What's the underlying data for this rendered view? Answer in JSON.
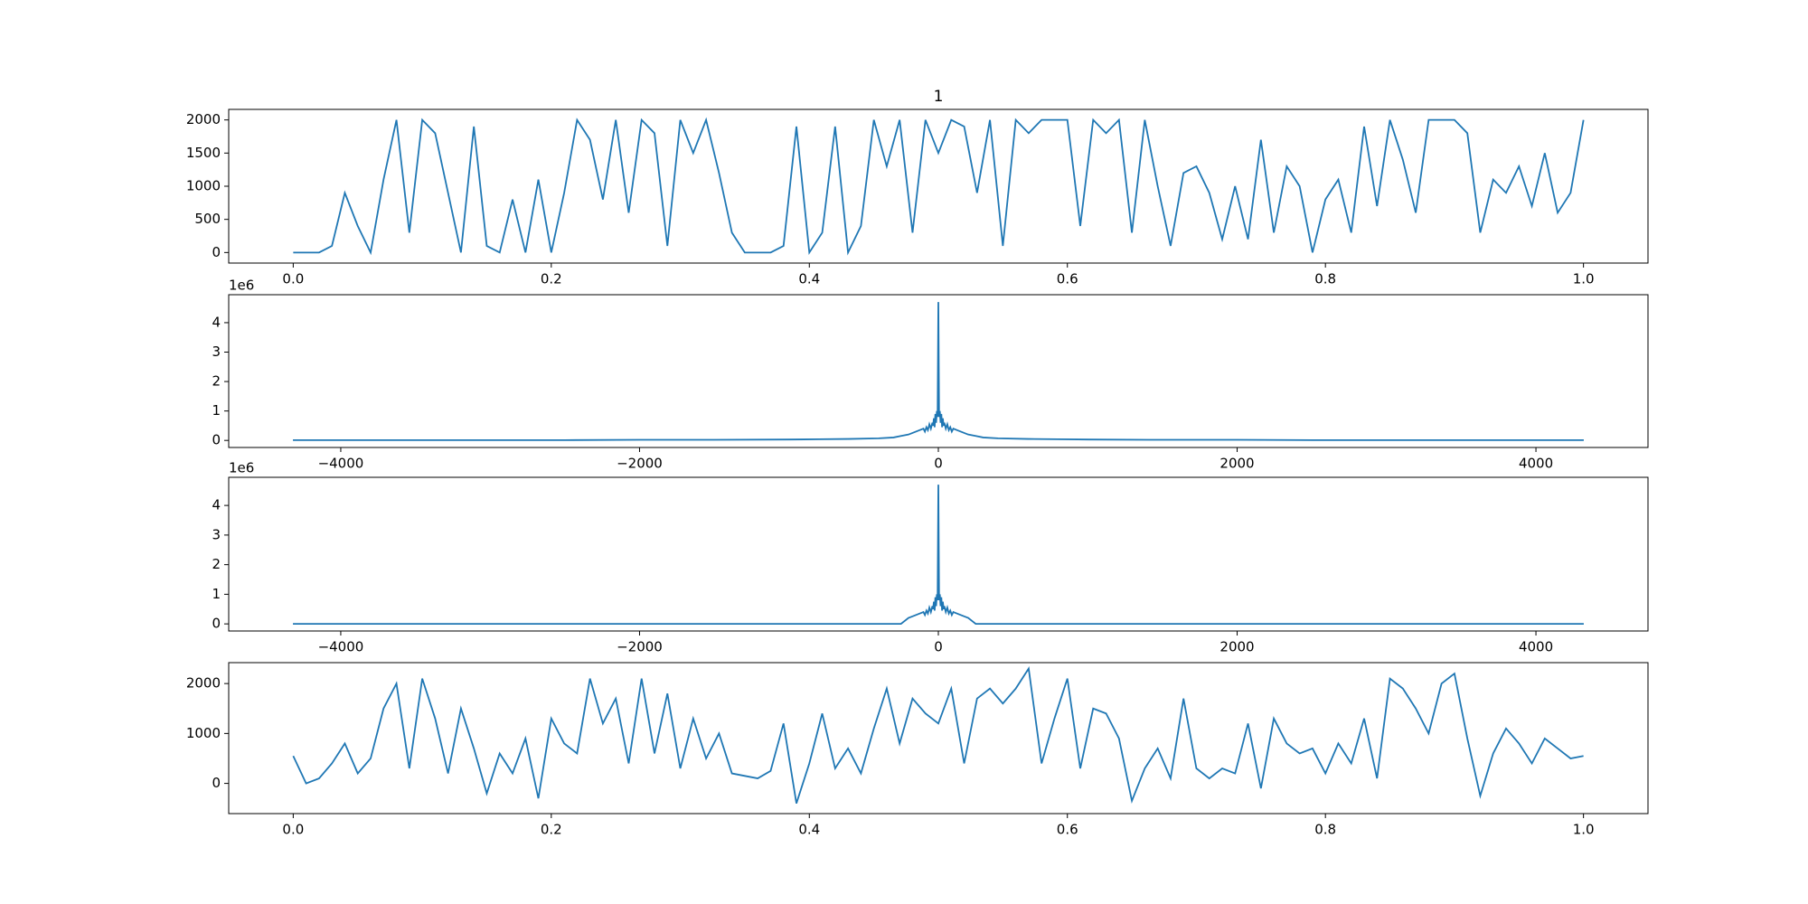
{
  "chart_data": [
    {
      "type": "line",
      "title": "1",
      "color": "#1f77b4",
      "x": [
        0,
        0.01,
        0.02,
        0.03,
        0.04,
        0.05,
        0.06,
        0.07,
        0.08,
        0.09,
        0.1,
        0.11,
        0.12,
        0.13,
        0.14,
        0.15,
        0.16,
        0.17,
        0.18,
        0.19,
        0.2,
        0.21,
        0.22,
        0.23,
        0.24,
        0.25,
        0.26,
        0.27,
        0.28,
        0.29,
        0.3,
        0.31,
        0.32,
        0.33,
        0.34,
        0.35,
        0.36,
        0.37,
        0.38,
        0.39,
        0.4,
        0.41,
        0.42,
        0.43,
        0.44,
        0.45,
        0.46,
        0.47,
        0.48,
        0.49,
        0.5,
        0.51,
        0.52,
        0.53,
        0.54,
        0.55,
        0.56,
        0.57,
        0.58,
        0.59,
        0.6,
        0.61,
        0.62,
        0.63,
        0.64,
        0.65,
        0.66,
        0.67,
        0.68,
        0.69,
        0.7,
        0.71,
        0.72,
        0.73,
        0.74,
        0.75,
        0.76,
        0.77,
        0.78,
        0.79,
        0.8,
        0.81,
        0.82,
        0.83,
        0.84,
        0.85,
        0.86,
        0.87,
        0.88,
        0.89,
        0.9,
        0.91,
        0.92,
        0.93,
        0.94,
        0.95,
        0.96,
        0.97,
        0.98,
        0.99,
        1
      ],
      "values": [
        0,
        0,
        0,
        100,
        900,
        400,
        0,
        1100,
        2000,
        300,
        2000,
        1800,
        900,
        0,
        1900,
        100,
        0,
        800,
        0,
        1100,
        0,
        900,
        2000,
        1700,
        800,
        2000,
        600,
        2000,
        1800,
        100,
        2000,
        1500,
        2000,
        1200,
        300,
        0,
        0,
        0,
        100,
        1900,
        0,
        300,
        1900,
        0,
        400,
        2000,
        1300,
        2000,
        300,
        2000,
        1500,
        2000,
        1900,
        900,
        2000,
        100,
        2000,
        1800,
        2000,
        2000,
        2000,
        400,
        2000,
        1800,
        2000,
        300,
        2000,
        1000,
        100,
        1200,
        1300,
        900,
        200,
        1000,
        200,
        1700,
        300,
        1300,
        1000,
        0,
        800,
        1100,
        300,
        1900,
        700,
        2000,
        1400,
        600,
        2000,
        2000,
        2000,
        1800,
        300,
        1100,
        900,
        1300,
        700,
        1500,
        600,
        900,
        2000
      ],
      "xlim": [
        -0.05,
        1.05
      ],
      "ylim": [
        -159,
        2159
      ],
      "xticks": [
        {
          "value": 0,
          "label": "0.0"
        },
        0.2,
        0.4,
        0.6,
        0.8,
        {
          "value": 1,
          "label": "1.0"
        }
      ],
      "yticks": [
        0,
        500,
        1000,
        1500,
        2000
      ]
    },
    {
      "type": "line",
      "offset_text": "1e6",
      "color": "#1f77b4",
      "x": [
        -4320,
        -4000,
        -3500,
        -3000,
        -2500,
        -2000,
        -1500,
        -1000,
        -800,
        -600,
        -400,
        -300,
        -250,
        -200,
        -175,
        -150,
        -125,
        -100,
        -90,
        -80,
        -70,
        -60,
        -50,
        -40,
        -35,
        -30,
        -25,
        -20,
        -15,
        -10,
        -5,
        0,
        5,
        10,
        15,
        20,
        25,
        30,
        35,
        40,
        50,
        60,
        70,
        80,
        90,
        100,
        125,
        150,
        175,
        200,
        250,
        300,
        400,
        600,
        800,
        1000,
        1500,
        2000,
        2500,
        3000,
        3500,
        4000,
        4320
      ],
      "values": [
        0.01,
        0.01,
        0.01,
        0.01,
        0.01,
        0.02,
        0.02,
        0.03,
        0.04,
        0.05,
        0.07,
        0.1,
        0.15,
        0.2,
        0.25,
        0.3,
        0.35,
        0.4,
        0.3,
        0.45,
        0.35,
        0.55,
        0.4,
        0.6,
        0.5,
        0.75,
        0.45,
        0.9,
        0.6,
        1.0,
        0.8,
        4.7,
        0.8,
        1.0,
        0.6,
        0.9,
        0.45,
        0.75,
        0.5,
        0.6,
        0.4,
        0.55,
        0.35,
        0.45,
        0.3,
        0.4,
        0.35,
        0.3,
        0.25,
        0.2,
        0.15,
        0.1,
        0.07,
        0.05,
        0.04,
        0.03,
        0.02,
        0.02,
        0.01,
        0.01,
        0.01,
        0.01,
        0.01
      ],
      "xlim": [
        -4750,
        4750
      ],
      "ylim": [
        -0.24,
        4.95
      ],
      "xticks": [
        {
          "value": -4000,
          "label": "−4000"
        },
        {
          "value": -2000,
          "label": "−2000"
        },
        0,
        2000,
        4000
      ],
      "yticks": [
        0,
        1,
        2,
        3,
        4
      ]
    },
    {
      "type": "line",
      "offset_text": "1e6",
      "color": "#1f77b4",
      "x": [
        -4320,
        -4000,
        -3500,
        -3000,
        -2500,
        -2000,
        -1500,
        -1000,
        -800,
        -600,
        -400,
        -300,
        -250,
        -200,
        -175,
        -150,
        -125,
        -100,
        -90,
        -80,
        -70,
        -60,
        -50,
        -40,
        -35,
        -30,
        -25,
        -20,
        -15,
        -10,
        -5,
        0,
        5,
        10,
        15,
        20,
        25,
        30,
        35,
        40,
        50,
        60,
        70,
        80,
        90,
        100,
        125,
        150,
        175,
        200,
        250,
        300,
        400,
        600,
        800,
        1000,
        1500,
        2000,
        2500,
        3000,
        3500,
        4000,
        4320
      ],
      "values": [
        0,
        0,
        0,
        0,
        0,
        0,
        0,
        0,
        0,
        0,
        0,
        0,
        0,
        0.2,
        0.25,
        0.3,
        0.35,
        0.4,
        0.3,
        0.45,
        0.35,
        0.55,
        0.4,
        0.6,
        0.5,
        0.75,
        0.45,
        0.9,
        0.6,
        1.0,
        0.8,
        4.7,
        0.8,
        1.0,
        0.6,
        0.9,
        0.45,
        0.75,
        0.5,
        0.6,
        0.4,
        0.55,
        0.35,
        0.45,
        0.3,
        0.4,
        0.35,
        0.3,
        0.25,
        0.2,
        0,
        0,
        0,
        0,
        0,
        0,
        0,
        0,
        0,
        0,
        0,
        0,
        0
      ],
      "xlim": [
        -4750,
        4750
      ],
      "ylim": [
        -0.24,
        4.95
      ],
      "xticks": [
        {
          "value": -4000,
          "label": "−4000"
        },
        {
          "value": -2000,
          "label": "−2000"
        },
        0,
        2000,
        4000
      ],
      "yticks": [
        0,
        1,
        2,
        3,
        4
      ]
    },
    {
      "type": "line",
      "color": "#1f77b4",
      "x": [
        0,
        0.01,
        0.02,
        0.03,
        0.04,
        0.05,
        0.06,
        0.07,
        0.08,
        0.09,
        0.1,
        0.11,
        0.12,
        0.13,
        0.14,
        0.15,
        0.16,
        0.17,
        0.18,
        0.19,
        0.2,
        0.21,
        0.22,
        0.23,
        0.24,
        0.25,
        0.26,
        0.27,
        0.28,
        0.29,
        0.3,
        0.31,
        0.32,
        0.33,
        0.34,
        0.35,
        0.36,
        0.37,
        0.38,
        0.39,
        0.4,
        0.41,
        0.42,
        0.43,
        0.44,
        0.45,
        0.46,
        0.47,
        0.48,
        0.49,
        0.5,
        0.51,
        0.52,
        0.53,
        0.54,
        0.55,
        0.56,
        0.57,
        0.58,
        0.59,
        0.6,
        0.61,
        0.62,
        0.63,
        0.64,
        0.65,
        0.66,
        0.67,
        0.68,
        0.69,
        0.7,
        0.71,
        0.72,
        0.73,
        0.74,
        0.75,
        0.76,
        0.77,
        0.78,
        0.79,
        0.8,
        0.81,
        0.82,
        0.83,
        0.84,
        0.85,
        0.86,
        0.87,
        0.88,
        0.89,
        0.9,
        0.91,
        0.92,
        0.93,
        0.94,
        0.95,
        0.96,
        0.97,
        0.98,
        0.99,
        1
      ],
      "values": [
        550,
        0,
        100,
        400,
        800,
        200,
        500,
        1500,
        2000,
        300,
        2100,
        1300,
        200,
        1500,
        700,
        -200,
        600,
        200,
        900,
        -300,
        1300,
        800,
        600,
        2100,
        1200,
        1700,
        400,
        2100,
        600,
        1800,
        300,
        1300,
        500,
        1000,
        200,
        150,
        100,
        250,
        1200,
        -400,
        400,
        1400,
        300,
        700,
        200,
        1100,
        1900,
        800,
        1700,
        1400,
        1200,
        1900,
        400,
        1700,
        1900,
        1600,
        1900,
        2300,
        400,
        1300,
        2100,
        300,
        1500,
        1400,
        900,
        -350,
        300,
        700,
        100,
        1700,
        300,
        100,
        300,
        200,
        1200,
        -100,
        1300,
        800,
        600,
        700,
        200,
        800,
        400,
        1300,
        100,
        2100,
        1900,
        1500,
        1000,
        2000,
        2200,
        900,
        -250,
        600,
        1100,
        800,
        400,
        900,
        700,
        500,
        550
      ],
      "xlim": [
        -0.05,
        1.05
      ],
      "ylim": [
        -605,
        2419
      ],
      "xticks": [
        {
          "value": 0,
          "label": "0.0"
        },
        0.2,
        0.4,
        0.6,
        0.8,
        {
          "value": 1,
          "label": "1.0"
        }
      ],
      "yticks": [
        0,
        1000,
        2000
      ]
    }
  ]
}
